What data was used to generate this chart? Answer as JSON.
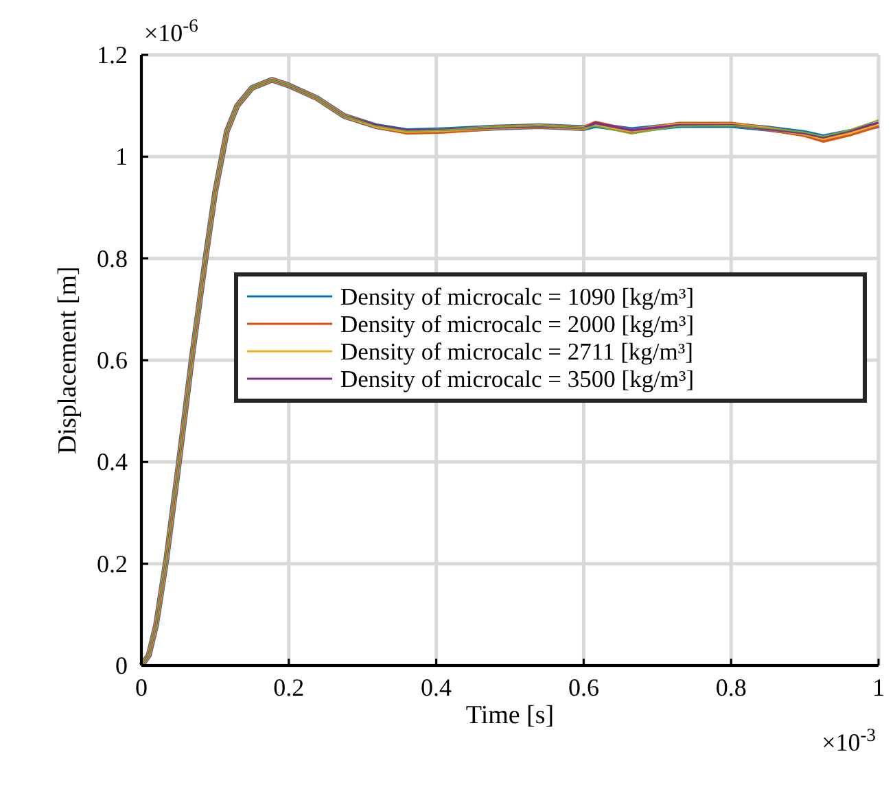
{
  "chart_data": {
    "type": "line",
    "xlabel": "Time [s]",
    "ylabel": "Displacement [m]",
    "annotations": [
      "×10$^{-6}$",
      "×10$^{-3}$"
    ],
    "x": [
      0,
      0.01,
      0.02,
      0.034,
      0.051,
      0.069,
      0.087,
      0.1,
      0.116,
      0.13,
      0.15,
      0.177,
      0.2,
      0.238,
      0.275,
      0.318,
      0.36,
      0.41,
      0.48,
      0.54,
      0.6,
      0.616,
      0.665,
      0.73,
      0.8,
      0.85,
      0.9,
      0.925,
      0.96,
      1.0
    ],
    "series": [
      {
        "name": "Density of microcalc = 1090 [kg/m³]",
        "color": "#0072bd",
        "values": [
          0,
          0.02,
          0.08,
          0.21,
          0.4,
          0.61,
          0.8,
          0.93,
          1.05,
          1.1,
          1.135,
          1.151,
          1.14,
          1.115,
          1.08,
          1.06,
          1.05,
          1.052,
          1.057,
          1.06,
          1.056,
          1.062,
          1.052,
          1.062,
          1.062,
          1.055,
          1.046,
          1.038,
          1.048,
          1.062
        ]
      },
      {
        "name": "Density of microcalc = 2000 [kg/m³]",
        "color": "#d95319",
        "values": [
          0,
          0.02,
          0.08,
          0.21,
          0.4,
          0.61,
          0.8,
          0.93,
          1.05,
          1.1,
          1.135,
          1.151,
          1.14,
          1.115,
          1.08,
          1.06,
          1.048,
          1.05,
          1.057,
          1.06,
          1.056,
          1.066,
          1.05,
          1.064,
          1.064,
          1.055,
          1.043,
          1.032,
          1.044,
          1.062
        ]
      },
      {
        "name": "Density of microcalc = 2711 [kg/m³]",
        "color": "#edb120",
        "values": [
          0,
          0.02,
          0.08,
          0.21,
          0.4,
          0.61,
          0.8,
          0.93,
          1.05,
          1.1,
          1.135,
          1.151,
          1.14,
          1.115,
          1.08,
          1.06,
          1.05,
          1.052,
          1.057,
          1.06,
          1.056,
          1.064,
          1.051,
          1.063,
          1.063,
          1.055,
          1.045,
          1.036,
          1.047,
          1.065
        ]
      },
      {
        "name": "Density of microcalc = 3500 [kg/m³]",
        "color": "#7e2f8e",
        "values": [
          0,
          0.02,
          0.08,
          0.21,
          0.4,
          0.61,
          0.8,
          0.93,
          1.05,
          1.1,
          1.135,
          1.151,
          1.14,
          1.115,
          1.08,
          1.062,
          1.052,
          1.053,
          1.057,
          1.06,
          1.056,
          1.066,
          1.052,
          1.062,
          1.062,
          1.054,
          1.046,
          1.038,
          1.05,
          1.067
        ]
      },
      {
        "color": "#77ac30",
        "values": [
          0,
          0.02,
          0.08,
          0.21,
          0.4,
          0.61,
          0.8,
          0.93,
          1.05,
          1.1,
          1.135,
          1.151,
          1.14,
          1.115,
          1.08,
          1.06,
          1.05,
          1.052,
          1.058,
          1.061,
          1.056,
          1.06,
          1.045,
          1.06,
          1.061,
          1.056,
          1.048,
          1.04,
          1.052,
          1.072
        ]
      }
    ],
    "xlim": [
      0,
      1
    ],
    "xticks": [
      0,
      0.2,
      0.4,
      0.6,
      0.8,
      1
    ],
    "ylim": [
      0,
      1.2
    ],
    "yticks": [
      0,
      0.2,
      0.4,
      0.6,
      0.8,
      1,
      1.2
    ],
    "grid": true,
    "legend": "center",
    "line_style": "solid"
  }
}
